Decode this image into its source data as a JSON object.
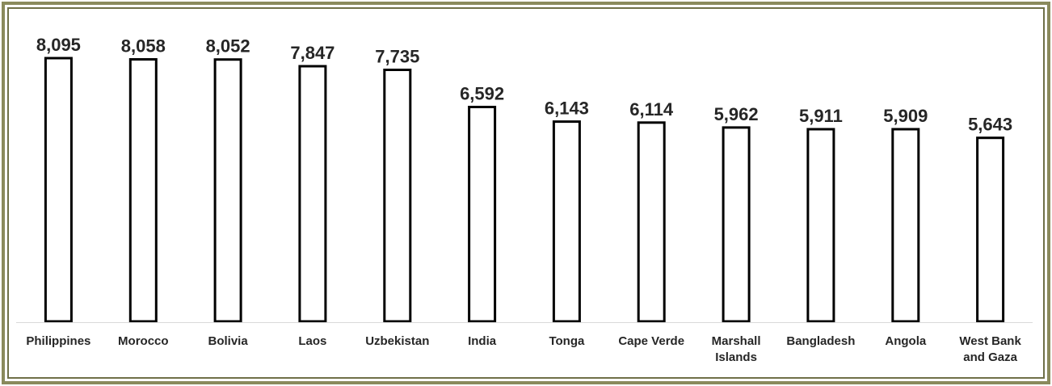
{
  "chart_data": {
    "type": "bar",
    "categories": [
      [
        "Philippines"
      ],
      [
        "Morocco"
      ],
      [
        "Bolivia"
      ],
      [
        "Laos"
      ],
      [
        "Uzbekistan"
      ],
      [
        "India"
      ],
      [
        "Tonga"
      ],
      [
        "Cape Verde"
      ],
      [
        "Marshall",
        "Islands"
      ],
      [
        "Bangladesh"
      ],
      [
        "Angola"
      ],
      [
        "West Bank",
        "and Gaza"
      ]
    ],
    "values": [
      8095,
      8058,
      8052,
      7847,
      7735,
      6592,
      6143,
      6114,
      5962,
      5911,
      5909,
      5643
    ],
    "value_labels": [
      "8,095",
      "8,058",
      "8,052",
      "7,847",
      "7,735",
      "6,592",
      "6,143",
      "6,114",
      "5,962",
      "5,911",
      "5,909",
      "5,643"
    ],
    "title": "",
    "xlabel": "",
    "ylabel": "",
    "ylim": [
      0,
      8095
    ],
    "grid": false,
    "legend": "none",
    "colors": {
      "bar_fill": "#ffffff",
      "bar_stroke": "#000000",
      "frame": "#8a8a5c",
      "text": "#262626",
      "axis": "#d9d9d9"
    }
  }
}
